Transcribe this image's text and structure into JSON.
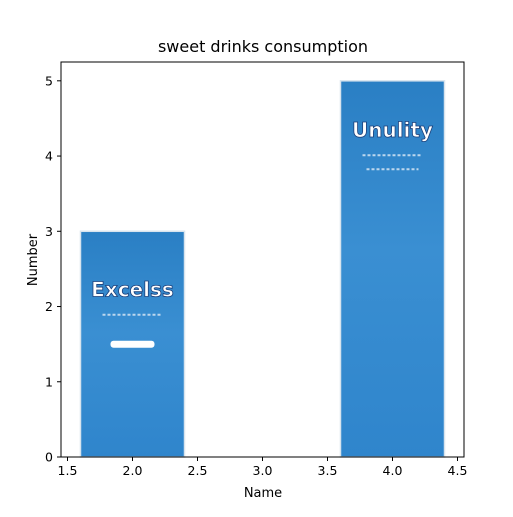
{
  "chart_data": {
    "type": "bar",
    "title": "sweet drinks consumption",
    "xlabel": "Name",
    "ylabel": "Number",
    "xlim": [
      1.45,
      4.55
    ],
    "ylim": [
      0,
      5.25
    ],
    "xticks": [
      1.5,
      2.0,
      2.5,
      3.0,
      3.5,
      4.0,
      4.5
    ],
    "xtick_labels": [
      "1.5",
      "2.0",
      "2.5",
      "3.0",
      "3.5",
      "4.0",
      "4.5"
    ],
    "yticks": [
      0,
      1,
      2,
      3,
      4,
      5
    ],
    "ytick_labels": [
      "0",
      "1",
      "2",
      "3",
      "4",
      "5"
    ],
    "grid": false,
    "bar_width": 0.8,
    "bars": [
      {
        "x": 2,
        "value": 3,
        "label": "Excelss",
        "color": "#2f86c9"
      },
      {
        "x": 4,
        "value": 5,
        "label": "Unulity",
        "color": "#2f86c9"
      }
    ]
  }
}
